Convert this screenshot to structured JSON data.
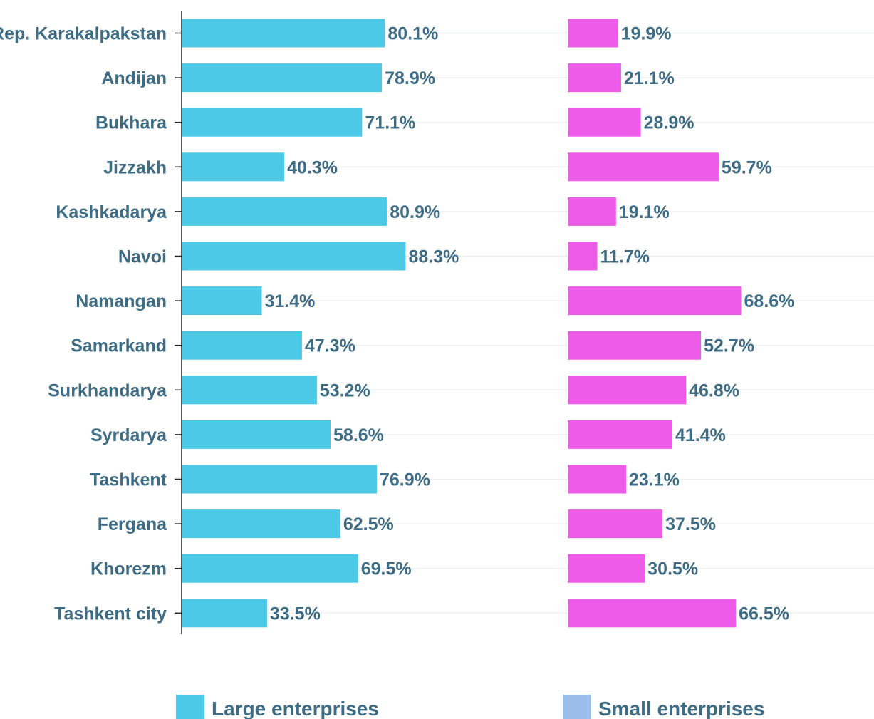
{
  "chart_data": {
    "type": "bar",
    "orientation": "horizontal",
    "layout": "two-panel",
    "categories": [
      "Rep. Karakalpakstan",
      "Andijan",
      "Bukhara",
      "Jizzakh",
      "Kashkadarya",
      "Navoi",
      "Namangan",
      "Samarkand",
      "Surkhandarya",
      "Syrdarya",
      "Tashkent",
      "Fergana",
      "Khorezm",
      "Tashkent city"
    ],
    "series": [
      {
        "name": "Large enterprises",
        "color": "#4cc9e6",
        "values": [
          80.1,
          78.9,
          71.1,
          40.3,
          80.9,
          88.3,
          31.4,
          47.3,
          53.2,
          58.6,
          76.9,
          62.5,
          69.5,
          33.5
        ],
        "labels": [
          "80.1%",
          "78.9%",
          "71.1%",
          "40.3%",
          "80.9%",
          "88.3%",
          "31.4%",
          "47.3%",
          "53.2%",
          "58.6%",
          "76.9%",
          "62.5%",
          "69.5%",
          "33.5%"
        ]
      },
      {
        "name": "Small enterprises",
        "color": "#ee5be8",
        "legend_color": "#9bbde9",
        "values": [
          19.9,
          21.1,
          28.9,
          59.7,
          19.1,
          11.7,
          68.6,
          52.7,
          46.8,
          41.4,
          23.1,
          37.5,
          30.5,
          66.5
        ],
        "labels": [
          "19.9%",
          "21.1%",
          "28.9%",
          "59.7%",
          "19.1%",
          "11.7%",
          "68.6%",
          "52.7%",
          "46.8%",
          "41.4%",
          "23.1%",
          "37.5%",
          "30.5%",
          "66.5%"
        ]
      }
    ],
    "xlim": [
      0,
      100
    ],
    "grid": true,
    "legend_position": "bottom",
    "title": "",
    "xlabel": "",
    "ylabel": ""
  }
}
